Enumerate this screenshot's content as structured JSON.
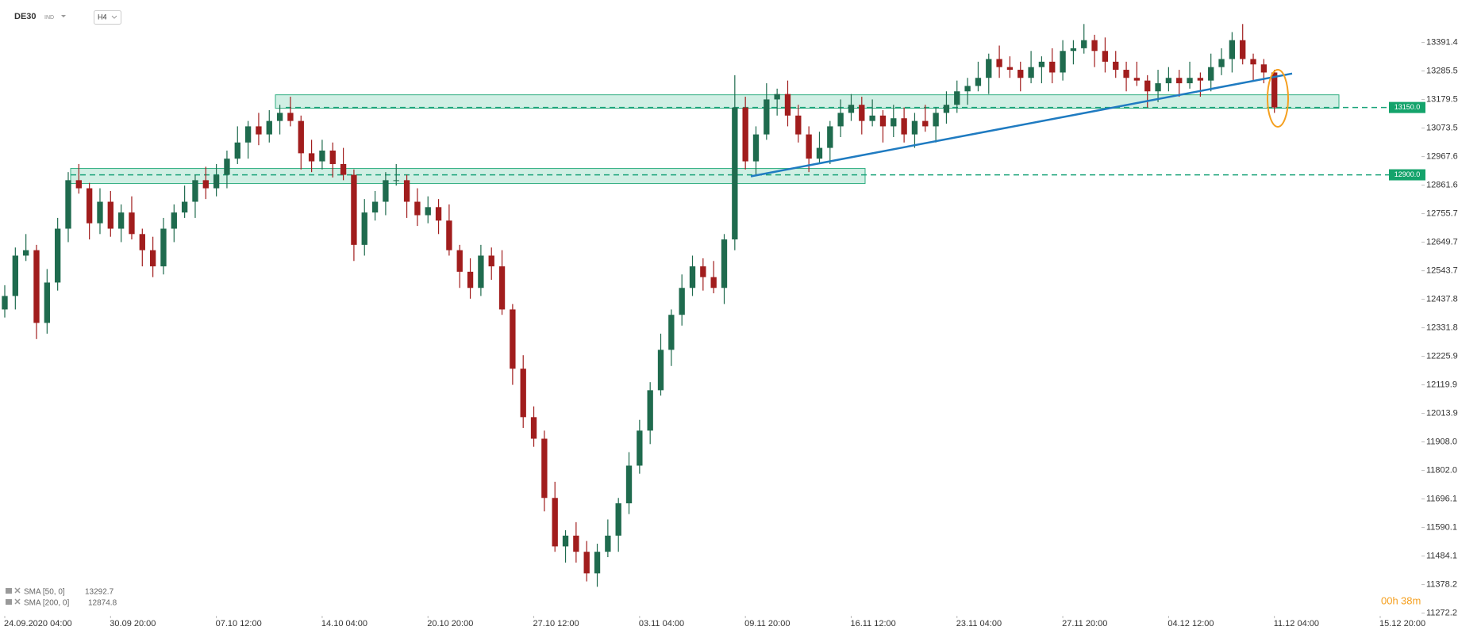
{
  "header": {
    "symbol": "DE30",
    "market": "IND",
    "timeframe": "H4"
  },
  "chart_data": {
    "type": "candlestick",
    "up_color": "#1f6b4e",
    "down_color": "#a11d1d",
    "open": [
      12400,
      12450,
      12600,
      12620,
      12350,
      12500,
      12700,
      12880,
      12850,
      12720,
      12800,
      12700,
      12760,
      12680,
      12620,
      12560,
      12700,
      12760,
      12800,
      12880,
      12850,
      12900,
      12960,
      13020,
      13080,
      13050,
      13100,
      13130,
      13100,
      12980,
      12950,
      12990,
      12940,
      12900,
      12640,
      12760,
      12800,
      12880,
      12880,
      12800,
      12750,
      12780,
      12730,
      12620,
      12540,
      12480,
      12600,
      12560,
      12400,
      12180,
      12000,
      11920,
      11700,
      11520,
      11560,
      11500,
      11420,
      11500,
      11560,
      11680,
      11820,
      11950,
      12100,
      12250,
      12380,
      12480,
      12560,
      12520,
      12480,
      12660,
      13150,
      12950,
      13050,
      13180,
      13200,
      13120,
      13050,
      12960,
      13000,
      13080,
      13130,
      13160,
      13100,
      13120,
      13080,
      13110,
      13050,
      13100,
      13080,
      13130,
      13160,
      13210,
      13230,
      13260,
      13330,
      13300,
      13290,
      13260,
      13300,
      13320,
      13280,
      13360,
      13370,
      13400,
      13360,
      13320,
      13290,
      13260,
      13250,
      13210,
      13240,
      13260,
      13240,
      13260,
      13250,
      13300,
      13330,
      13400,
      13330,
      13310,
      13280
    ],
    "high": [
      12490,
      12630,
      12680,
      12640,
      12550,
      12740,
      12910,
      12940,
      12870,
      12850,
      12840,
      12790,
      12820,
      12700,
      12670,
      12740,
      12790,
      12860,
      12900,
      12930,
      12940,
      12990,
      13080,
      13100,
      13130,
      13140,
      13160,
      13190,
      13120,
      13030,
      13030,
      13020,
      13000,
      12920,
      12810,
      12840,
      12910,
      12940,
      12900,
      12850,
      12820,
      12810,
      12790,
      12640,
      12590,
      12640,
      12630,
      12620,
      12420,
      12230,
      12040,
      11950,
      11760,
      11580,
      11610,
      11540,
      11530,
      11620,
      11700,
      11870,
      11990,
      12130,
      12310,
      12400,
      12530,
      12600,
      12590,
      12580,
      12680,
      13270,
      13190,
      13080,
      13240,
      13220,
      13250,
      13160,
      13080,
      13060,
      13100,
      13180,
      13200,
      13190,
      13180,
      13140,
      13160,
      13150,
      13130,
      13160,
      13150,
      13210,
      13250,
      13260,
      13320,
      13350,
      13380,
      13340,
      13320,
      13360,
      13340,
      13370,
      13400,
      13400,
      13460,
      13420,
      13410,
      13360,
      13320,
      13320,
      13270,
      13290,
      13300,
      13290,
      13320,
      13280,
      13350,
      13370,
      13430,
      13460,
      13350,
      13330,
      13290
    ],
    "low": [
      12370,
      12400,
      12580,
      12290,
      12310,
      12470,
      12650,
      12830,
      12660,
      12680,
      12670,
      12650,
      12660,
      12560,
      12520,
      12530,
      12650,
      12740,
      12740,
      12810,
      12820,
      12850,
      12940,
      12960,
      13010,
      13020,
      13050,
      13080,
      12920,
      12910,
      12920,
      12890,
      12880,
      12580,
      12600,
      12730,
      12750,
      12860,
      12740,
      12710,
      12720,
      12680,
      12600,
      12480,
      12440,
      12450,
      12510,
      12380,
      12120,
      11960,
      11890,
      11650,
      11500,
      11460,
      11460,
      11390,
      11370,
      11480,
      11500,
      11640,
      11790,
      11900,
      12080,
      12190,
      12340,
      12450,
      12470,
      12460,
      12420,
      12620,
      12920,
      12900,
      13030,
      13120,
      13080,
      13020,
      12910,
      12940,
      12940,
      13040,
      13100,
      13050,
      13080,
      13020,
      13040,
      13020,
      13000,
      13060,
      13020,
      13090,
      13130,
      13160,
      13210,
      13200,
      13260,
      13260,
      13210,
      13240,
      13240,
      13240,
      13250,
      13310,
      13350,
      13300,
      13280,
      13260,
      13210,
      13230,
      13150,
      13170,
      13210,
      13190,
      13220,
      13190,
      13210,
      13270,
      13280,
      13310,
      13250,
      13240,
      13130
    ],
    "close": [
      12450,
      12600,
      12620,
      12350,
      12500,
      12700,
      12880,
      12850,
      12720,
      12800,
      12700,
      12760,
      12680,
      12620,
      12560,
      12700,
      12760,
      12800,
      12880,
      12850,
      12900,
      12960,
      13020,
      13080,
      13050,
      13100,
      13130,
      13100,
      12980,
      12950,
      12990,
      12940,
      12900,
      12640,
      12760,
      12800,
      12880,
      12880,
      12800,
      12750,
      12780,
      12730,
      12620,
      12540,
      12480,
      12600,
      12560,
      12400,
      12180,
      12000,
      11920,
      11700,
      11520,
      11560,
      11500,
      11420,
      11500,
      11560,
      11680,
      11820,
      11950,
      12100,
      12250,
      12380,
      12480,
      12560,
      12520,
      12480,
      12660,
      13150,
      12950,
      13050,
      13180,
      13200,
      13120,
      13050,
      12960,
      13000,
      13080,
      13130,
      13160,
      13100,
      13120,
      13080,
      13110,
      13050,
      13100,
      13080,
      13130,
      13160,
      13210,
      13230,
      13260,
      13330,
      13300,
      13290,
      13260,
      13300,
      13320,
      13280,
      13360,
      13370,
      13400,
      13360,
      13320,
      13290,
      13260,
      13250,
      13210,
      13240,
      13260,
      13240,
      13260,
      13250,
      13300,
      13330,
      13400,
      13330,
      13310,
      13280,
      13150
    ],
    "xlim": [
      -0.45,
      133.9
    ],
    "xticks": [
      {
        "value": 0,
        "label": "24.09.2020  04:00"
      },
      {
        "value": 10,
        "label": "30.09  20:00"
      },
      {
        "value": 20,
        "label": "07.10  12:00"
      },
      {
        "value": 30,
        "label": "14.10  04:00"
      },
      {
        "value": 40,
        "label": "20.10  20:00"
      },
      {
        "value": 50,
        "label": "27.10  12:00"
      },
      {
        "value": 60,
        "label": "03.11  04:00"
      },
      {
        "value": 70,
        "label": "09.11  20:00"
      },
      {
        "value": 80,
        "label": "16.11  12:00"
      },
      {
        "value": 90,
        "label": "23.11  04:00"
      },
      {
        "value": 100,
        "label": "27.11  20:00"
      },
      {
        "value": 110,
        "label": "04.12  12:00"
      },
      {
        "value": 120,
        "label": "11.12  04:00"
      },
      {
        "value": 130,
        "label": "15.12  20:00"
      }
    ],
    "ylim": [
      11268.1,
      13549.2
    ],
    "yticks": [
      13391.4,
      13285.5,
      13179.5,
      13073.5,
      12967.6,
      12861.6,
      12755.7,
      12649.7,
      12543.7,
      12437.8,
      12331.8,
      12225.9,
      12119.9,
      12013.9,
      {
        "value": 11908,
        "label": "11908.0"
      },
      {
        "value": 11802,
        "label": "11802.0"
      },
      11696.1,
      11590.1,
      11484.1,
      11378.2,
      11272.2
    ],
    "levels": [
      {
        "value": 13150,
        "label": "13150.0"
      },
      {
        "value": 12900,
        "label": "12900.0"
      }
    ]
  },
  "indicators": [
    {
      "name": "SMA [50, 0]",
      "value": 13292.7
    },
    {
      "name": "SMA [200, 0]",
      "value": 12874.8
    }
  ],
  "timer": {
    "hours": "00h",
    "minutes": "38m"
  }
}
